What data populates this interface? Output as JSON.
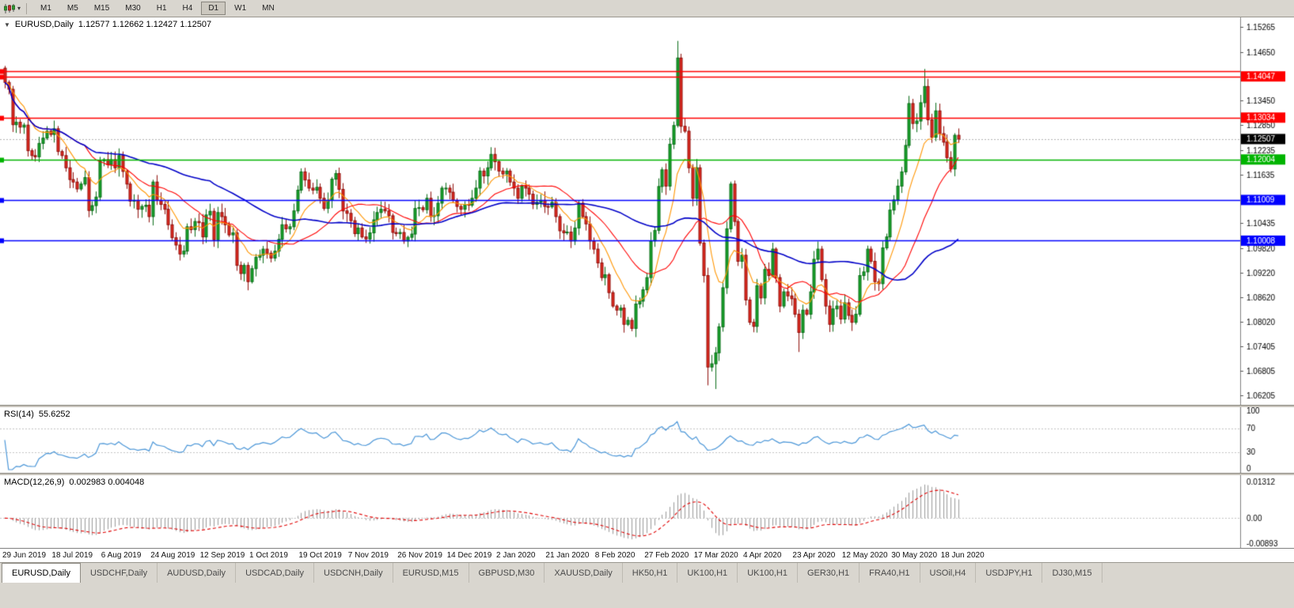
{
  "toolbar": {
    "timeframes": [
      "M1",
      "M5",
      "M15",
      "M30",
      "H1",
      "H4",
      "D1",
      "W1",
      "MN"
    ],
    "active": "D1"
  },
  "chart": {
    "symbol_label": "EURUSD,Daily",
    "ohlc_text": "1.12577 1.12662 1.12427 1.12507",
    "current_price": 1.12507,
    "price_axis": {
      "ticks": [
        "1.15265",
        "1.14650",
        "1.13450",
        "1.12850",
        "1.12235",
        "1.11635",
        "1.10435",
        "1.09820",
        "1.09220",
        "1.08620",
        "1.08020",
        "1.07405",
        "1.06805",
        "1.06205"
      ],
      "badges": [
        {
          "value": "1.14047",
          "color": "#ff0000"
        },
        {
          "value": "1.13034",
          "color": "#ff0000"
        },
        {
          "value": "1.12507",
          "color": "#000000"
        },
        {
          "value": "1.12004",
          "color": "#00b400"
        },
        {
          "value": "1.11009",
          "color": "#0000ff"
        },
        {
          "value": "1.10008",
          "color": "#0000ff"
        }
      ]
    },
    "levels": [
      {
        "price": 1.1418,
        "color": "#ff0000",
        "badge": false
      },
      {
        "price": 1.14047,
        "color": "#ff0000",
        "badge": true
      },
      {
        "price": 1.13034,
        "color": "#ff0000",
        "badge": true
      },
      {
        "price": 1.12004,
        "color": "#00b400",
        "badge": true
      },
      {
        "price": 1.11009,
        "color": "#0000ff",
        "badge": true
      },
      {
        "price": 1.10008,
        "color": "#0000ff",
        "badge": true
      }
    ]
  },
  "rsi": {
    "label": "RSI(14)",
    "value": "55.6252",
    "ticks": [
      "100",
      "70",
      "30",
      "0"
    ],
    "level_lines": [
      70,
      30
    ]
  },
  "macd": {
    "label": "MACD(12,26,9)",
    "values": "0.002983 0.004048",
    "ticks": [
      "0.01312",
      "0.00",
      "-0.00893"
    ],
    "tick_values": [
      0.01312,
      0,
      -0.00893
    ]
  },
  "tabs": {
    "active_index": 0,
    "items": [
      "EURUSD,Daily",
      "USDCHF,Daily",
      "AUDUSD,Daily",
      "USDCAD,Daily",
      "USDCNH,Daily",
      "EURUSD,M15",
      "GBPUSD,M30",
      "XAUUSD,Daily",
      "HK50,H1",
      "UK100,H1",
      "UK100,H1",
      "GER30,H1",
      "FRA40,H1",
      "USOil,H4",
      "USDJPY,H1",
      "DJ30,M15"
    ]
  },
  "chart_data": {
    "type": "candlestick",
    "symbol": "EURUSD",
    "timeframe": "Daily",
    "price_range": [
      1.06205,
      1.15265
    ],
    "label_step": 13,
    "date_labels": [
      "29 Jun 2019",
      "18 Jul 2019",
      "6 Aug 2019",
      "24 Aug 2019",
      "12 Sep 2019",
      "1 Oct 2019",
      "19 Oct 2019",
      "7 Nov 2019",
      "26 Nov 2019",
      "14 Dec 2019",
      "2 Jan 2020",
      "21 Jan 2020",
      "8 Feb 2020",
      "27 Feb 2020",
      "17 Mar 2020",
      "4 Apr 2020",
      "23 Apr 2020",
      "12 May 2020",
      "30 May 2020",
      "18 Jun 2020"
    ],
    "closes": [
      1.139,
      1.1373,
      1.1286,
      1.1292,
      1.128,
      1.1285,
      1.1222,
      1.121,
      1.1207,
      1.124,
      1.1253,
      1.127,
      1.1262,
      1.1276,
      1.122,
      1.121,
      1.118,
      1.1151,
      1.1145,
      1.1128,
      1.114,
      1.1156,
      1.1075,
      1.1087,
      1.1108,
      1.1197,
      1.12,
      1.1188,
      1.12,
      1.118,
      1.121,
      1.1171,
      1.114,
      1.1098,
      1.11,
      1.1078,
      1.1085,
      1.1088,
      1.106,
      1.1145,
      1.11,
      1.109,
      1.1078,
      1.104,
      1.1008,
      1.099,
      1.0968,
      1.0975,
      1.1035,
      1.1028,
      1.1048,
      1.1045,
      1.101,
      1.1064,
      1.1073,
      1.1003,
      1.107,
      1.106,
      1.104,
      1.1015,
      1.102,
      1.094,
      1.092,
      1.094,
      1.09,
      1.0932,
      1.096,
      1.0965,
      1.098,
      1.097,
      1.0958,
      1.0975,
      1.1004,
      1.104,
      1.103,
      1.1035,
      1.1074,
      1.1125,
      1.117,
      1.115,
      1.113,
      1.1125,
      1.1132,
      1.1105,
      1.108,
      1.11,
      1.1152,
      1.1166,
      1.1127,
      1.1074,
      1.1068,
      1.105,
      1.1018,
      1.1032,
      1.101,
      1.1005,
      1.102,
      1.1052,
      1.107,
      1.1078,
      1.1074,
      1.1062,
      1.1021,
      1.1018,
      1.1021,
      1.1,
      1.1009,
      1.1017,
      1.108,
      1.1082,
      1.1077,
      1.1105,
      1.106,
      1.1062,
      1.1093,
      1.113,
      1.113,
      1.112,
      1.11,
      1.1085,
      1.1078,
      1.109,
      1.1088,
      1.1105,
      1.113,
      1.1172,
      1.116,
      1.118,
      1.1213,
      1.1195,
      1.1172,
      1.1165,
      1.1172,
      1.1145,
      1.113,
      1.1105,
      1.1135,
      1.113,
      1.1115,
      1.109,
      1.1095,
      1.11,
      1.1085,
      1.1084,
      1.1095,
      1.106,
      1.1025,
      1.102,
      1.1022,
      1.1,
      1.1032,
      1.1093,
      1.106,
      1.1042,
      1.1,
      1.098,
      1.0946,
      1.091,
      1.0917,
      1.0873,
      1.084,
      1.083,
      1.0835,
      1.0795,
      1.0805,
      1.0785,
      1.0845,
      1.0852,
      1.088,
      1.091,
      1.1,
      1.1026,
      1.1134,
      1.1175,
      1.1135,
      1.1238,
      1.1284,
      1.145,
      1.1282,
      1.127,
      1.118,
      1.1105,
      1.118,
      1.0995,
      1.0915,
      1.069,
      1.0698,
      1.0725,
      1.0789,
      1.0885,
      1.103,
      1.114,
      1.1048,
      1.095,
      1.0965,
      1.0855,
      1.08,
      1.079,
      1.089,
      1.086,
      1.093,
      1.0915,
      1.098,
      1.091,
      1.084,
      1.0875,
      1.0865,
      1.0858,
      1.082,
      1.0775,
      1.083,
      1.082,
      1.0875,
      1.0955,
      1.098,
      1.0905,
      1.084,
      1.0795,
      1.0833,
      1.084,
      1.0808,
      1.0848,
      1.0817,
      1.08,
      1.082,
      1.0915,
      1.0924,
      1.098,
      1.095,
      1.09,
      1.0895,
      1.0983,
      1.101,
      1.1076,
      1.1101,
      1.1135,
      1.117,
      1.1235,
      1.1338,
      1.1289,
      1.1295,
      1.134,
      1.138,
      1.1298,
      1.1255,
      1.132,
      1.1264,
      1.1243,
      1.1205,
      1.1177,
      1.126,
      1.12507
    ],
    "wick_overrides": {
      "165": {
        "l": 1.0778
      },
      "177": {
        "h": 1.1492
      },
      "185": {
        "l": 1.0645
      },
      "187": {
        "l": 1.0636
      },
      "209": {
        "l": 1.0727
      },
      "242": {
        "h": 1.1423
      }
    },
    "moving_averages": [
      {
        "period": 10,
        "method": "ema",
        "color": "#ff9500"
      },
      {
        "period": 22,
        "method": "sma",
        "color": "#ff0000"
      },
      {
        "period": 55,
        "method": "sma",
        "color": "#0000c8"
      }
    ],
    "indicators": {
      "rsi_period": 14,
      "macd": [
        12,
        26,
        9
      ]
    },
    "candle_colors": {
      "up": "#18a32a",
      "up_border": "#0b6e1a",
      "down": "#e02a20",
      "down_border": "#8f100c"
    },
    "rsi_line_color": "#4a96d8",
    "macd_hist_color": "#9a9a9a",
    "macd_signal_color": "#e00000"
  }
}
